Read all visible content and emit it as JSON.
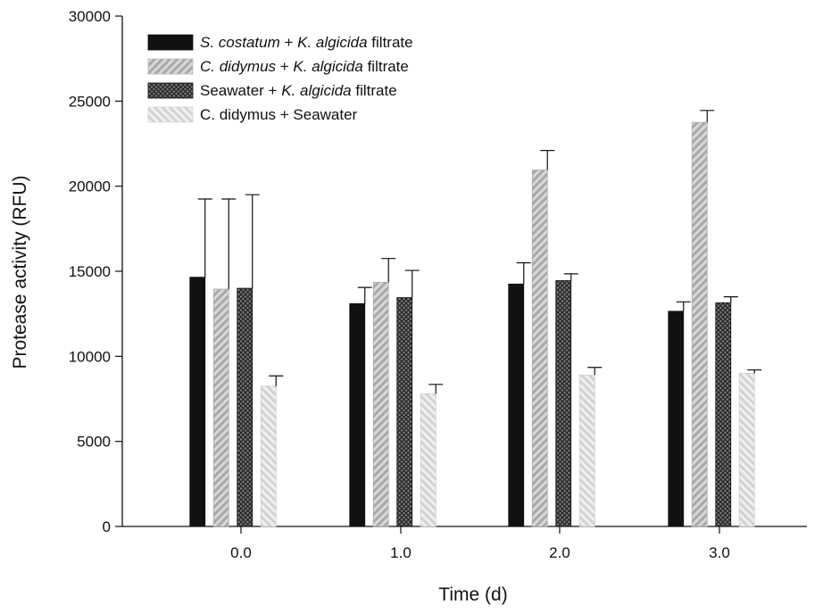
{
  "chart_data": {
    "type": "bar",
    "xlabel": "Time (d)",
    "ylabel": "Protease activity (RFU)",
    "ylim": [
      0,
      30000
    ],
    "yticks": [
      "0",
      "5000",
      "10000",
      "15000",
      "20000",
      "25000",
      "30000"
    ],
    "categories": [
      "0.0",
      "1.0",
      "2.0",
      "3.0"
    ],
    "error_bars": true,
    "legend_position": "top-left",
    "series": [
      {
        "name_parts": [
          {
            "text": "S. costatum",
            "italic": true
          },
          {
            "text": " + ",
            "italic": false
          },
          {
            "text": "K. algicida",
            "italic": true
          },
          {
            "text": " filtrate",
            "italic": false
          }
        ],
        "style": "solid-black",
        "color": "#111111",
        "values": [
          14650,
          13100,
          14250,
          12650
        ],
        "errors": [
          4600,
          950,
          1250,
          550
        ]
      },
      {
        "name_parts": [
          {
            "text": "C. didymus",
            "italic": true
          },
          {
            "text": " + ",
            "italic": false
          },
          {
            "text": "K. algicida",
            "italic": true
          },
          {
            "text": " filtrate",
            "italic": false
          }
        ],
        "style": "diagonal-hatch-gray",
        "color": "#b8b8b8",
        "values": [
          13950,
          14350,
          20950,
          23750
        ],
        "errors": [
          5300,
          1400,
          1150,
          700
        ]
      },
      {
        "name_parts": [
          {
            "text": "Seawater + ",
            "italic": false
          },
          {
            "text": "K. algicida",
            "italic": true
          },
          {
            "text": " filtrate",
            "italic": false
          }
        ],
        "style": "crosshatch-dark",
        "color": "#555555",
        "values": [
          14000,
          13450,
          14450,
          13150
        ],
        "errors": [
          5500,
          1600,
          400,
          350
        ]
      },
      {
        "name_parts": [
          {
            "text": "C. didymus + Seawater",
            "italic": false
          }
        ],
        "style": "diagonal-hatch-light",
        "color": "#dcdcdc",
        "values": [
          8250,
          7800,
          8900,
          9000
        ],
        "errors": [
          600,
          550,
          450,
          200
        ]
      }
    ]
  }
}
